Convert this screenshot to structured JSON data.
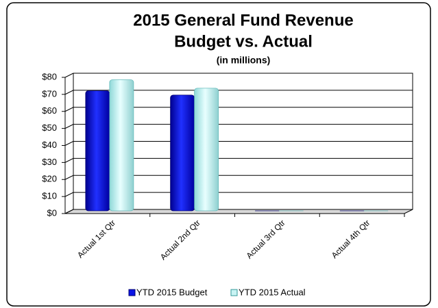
{
  "chart_data": {
    "type": "bar",
    "title": "2015 General Fund Revenue",
    "subtitle": "Budget vs. Actual",
    "unit_note": "(in millions)",
    "categories": [
      "Actual 1st Qtr",
      "Actual 2nd Qtr",
      "Actual 3rd Qtr",
      "Actual 4th Qtr"
    ],
    "series": [
      {
        "name": "YTD 2015 Budget",
        "color": "#0a14e6",
        "values": [
          70.5,
          68,
          0,
          0
        ]
      },
      {
        "name": "YTD 2015 Actual",
        "color": "#c9f4f4",
        "values": [
          77,
          72,
          0,
          0
        ]
      }
    ],
    "ylim": [
      0,
      80
    ],
    "yticks": [
      {
        "value": 0,
        "label": "$0"
      },
      {
        "value": 10,
        "label": "$10"
      },
      {
        "value": 20,
        "label": "$20"
      },
      {
        "value": 30,
        "label": "$30"
      },
      {
        "value": 40,
        "label": "$40"
      },
      {
        "value": 50,
        "label": "$50"
      },
      {
        "value": 60,
        "label": "$60"
      },
      {
        "value": 70,
        "label": "$70"
      },
      {
        "value": 80,
        "label": "$80"
      }
    ],
    "grid": true,
    "legend": "bottom"
  }
}
